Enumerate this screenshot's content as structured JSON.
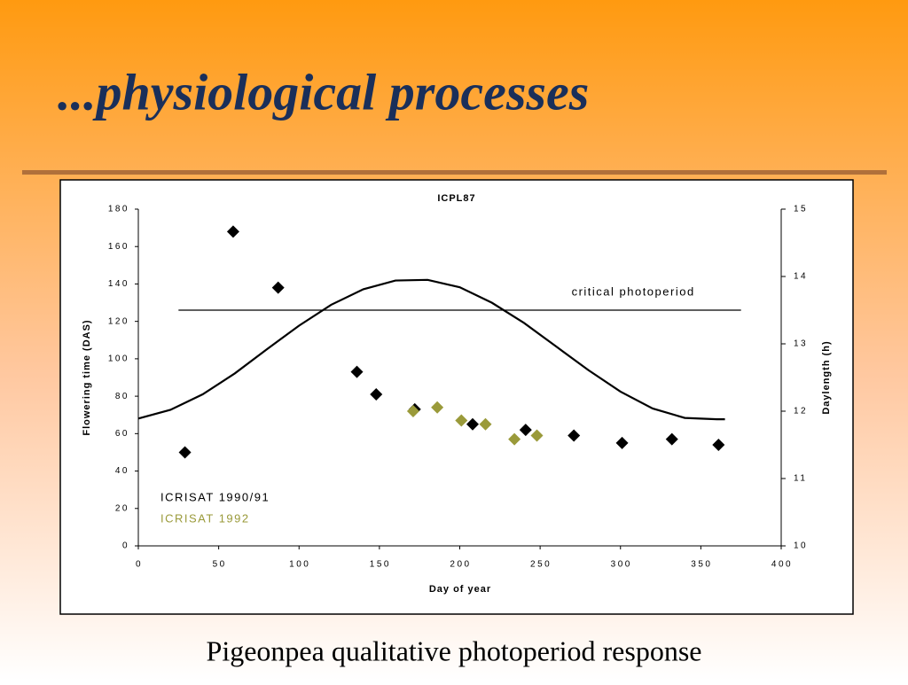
{
  "slide": {
    "title": "...physiological processes",
    "caption": "Pigeonpea qualitative photoperiod response"
  },
  "chart_data": {
    "type": "scatter",
    "title": "ICPL87",
    "x_label": "Day of year",
    "y_label": "Flowering time (DAS)",
    "y2_label": "Daylength (h)",
    "xlim": [
      0,
      400
    ],
    "xticks": [
      0,
      50,
      100,
      150,
      200,
      250,
      300,
      350,
      400
    ],
    "ylim": [
      0,
      180
    ],
    "yticks": [
      0,
      20,
      40,
      60,
      80,
      100,
      120,
      140,
      160,
      180
    ],
    "y2lim": [
      10,
      15
    ],
    "y2ticks": [
      10,
      11,
      12,
      13,
      14,
      15
    ],
    "grid": false,
    "legend": "lower left",
    "series": [
      {
        "name": "ICRISAT 1990/91",
        "color": "#000000",
        "x": [
          29,
          59,
          87,
          136,
          148,
          172,
          208,
          241,
          271,
          301,
          332,
          361
        ],
        "values": [
          50,
          168,
          138,
          93,
          81,
          73,
          65,
          62,
          59,
          55,
          57,
          54
        ]
      },
      {
        "name": "ICRISAT 1992",
        "color": "#9a9a3a",
        "x": [
          171,
          186,
          201,
          216,
          234,
          248
        ],
        "values": [
          72,
          74,
          67,
          65,
          57,
          59
        ]
      },
      {
        "type": "line",
        "axis": "y2",
        "color": "#000000",
        "x": [
          0,
          20,
          40,
          60,
          80,
          100,
          120,
          140,
          160,
          180,
          200,
          220,
          240,
          260,
          280,
          300,
          320,
          340,
          360,
          365
        ],
        "values": [
          11.89,
          12.02,
          12.25,
          12.56,
          12.92,
          13.27,
          13.58,
          13.81,
          13.94,
          13.95,
          13.84,
          13.61,
          13.31,
          12.96,
          12.61,
          12.29,
          12.04,
          11.9,
          11.88,
          11.88
        ]
      }
    ],
    "reference_line": {
      "label": "critical photoperiod",
      "axis": "y2",
      "value": 13.5,
      "x": [
        25,
        375
      ]
    }
  }
}
